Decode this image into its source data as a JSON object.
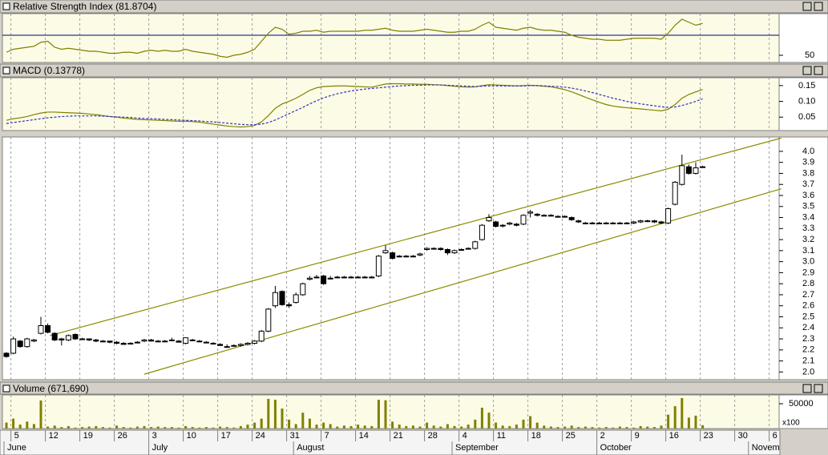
{
  "chart_data": [
    {
      "type": "line",
      "title": "Relative Strength Index (81.8704)",
      "color": "#808000",
      "ylim": [
        42.8,
        91.6
      ],
      "yticks": [
        50
      ],
      "reference_line": 70,
      "reference_color": "#000080",
      "values": [
        53,
        56,
        57,
        58,
        59,
        63,
        64,
        58,
        56,
        57,
        56,
        55,
        54,
        54,
        53,
        52,
        52,
        53,
        53,
        52,
        54,
        55,
        54,
        55,
        54,
        54,
        56,
        54,
        53,
        52,
        51,
        49,
        48,
        50,
        51,
        53,
        56,
        64,
        72,
        78,
        76,
        71,
        72,
        74,
        74,
        75,
        73,
        74,
        74,
        74,
        74,
        74,
        75,
        75,
        76,
        77,
        75,
        74,
        74,
        74,
        75,
        76,
        75,
        74,
        73,
        73,
        74,
        74,
        76,
        80,
        83,
        78,
        77,
        76,
        75,
        77,
        78,
        76,
        75,
        75,
        74,
        73,
        70,
        68,
        67,
        66,
        66,
        65,
        65,
        65,
        66,
        67,
        67,
        67,
        67,
        66,
        72,
        80,
        86,
        83,
        80,
        81.87
      ]
    },
    {
      "type": "line",
      "title": "MACD (0.13778)",
      "ylim": [
        0.0075,
        0.175
      ],
      "yticks": [
        0.15,
        {
          "value": 0.1,
          "label": "0.10"
        },
        0.05
      ],
      "series": [
        {
          "color": "#808000",
          "values": [
            0.04,
            0.045,
            0.048,
            0.052,
            0.058,
            0.063,
            0.066,
            0.066,
            0.065,
            0.064,
            0.063,
            0.062,
            0.06,
            0.058,
            0.055,
            0.052,
            0.05,
            0.047,
            0.045,
            0.043,
            0.042,
            0.041,
            0.04,
            0.039,
            0.038,
            0.037,
            0.037,
            0.036,
            0.034,
            0.031,
            0.028,
            0.025,
            0.022,
            0.02,
            0.019,
            0.02,
            0.024,
            0.035,
            0.055,
            0.078,
            0.092,
            0.1,
            0.11,
            0.122,
            0.135,
            0.143,
            0.147,
            0.148,
            0.149,
            0.149,
            0.148,
            0.147,
            0.146,
            0.145,
            0.15,
            0.155,
            0.156,
            0.156,
            0.155,
            0.155,
            0.154,
            0.154,
            0.153,
            0.152,
            0.15,
            0.148,
            0.146,
            0.145,
            0.146,
            0.15,
            0.153,
            0.152,
            0.151,
            0.15,
            0.149,
            0.15,
            0.151,
            0.15,
            0.148,
            0.146,
            0.142,
            0.137,
            0.13,
            0.122,
            0.113,
            0.105,
            0.097,
            0.09,
            0.085,
            0.082,
            0.08,
            0.078,
            0.076,
            0.074,
            0.072,
            0.07,
            0.075,
            0.09,
            0.11,
            0.122,
            0.13,
            0.13778
          ]
        },
        {
          "color": "#3030c0",
          "dashed": true,
          "values": [
            0.03,
            0.033,
            0.036,
            0.039,
            0.042,
            0.045,
            0.048,
            0.05,
            0.052,
            0.053,
            0.054,
            0.054,
            0.054,
            0.054,
            0.053,
            0.052,
            0.051,
            0.05,
            0.049,
            0.047,
            0.046,
            0.045,
            0.044,
            0.043,
            0.042,
            0.041,
            0.04,
            0.039,
            0.038,
            0.036,
            0.035,
            0.033,
            0.031,
            0.029,
            0.027,
            0.026,
            0.026,
            0.028,
            0.033,
            0.041,
            0.051,
            0.061,
            0.071,
            0.081,
            0.092,
            0.102,
            0.111,
            0.118,
            0.124,
            0.129,
            0.133,
            0.136,
            0.139,
            0.141,
            0.143,
            0.145,
            0.147,
            0.149,
            0.15,
            0.151,
            0.151,
            0.152,
            0.152,
            0.152,
            0.151,
            0.15,
            0.149,
            0.148,
            0.147,
            0.148,
            0.149,
            0.149,
            0.149,
            0.149,
            0.149,
            0.149,
            0.15,
            0.15,
            0.149,
            0.148,
            0.147,
            0.145,
            0.142,
            0.138,
            0.133,
            0.128,
            0.122,
            0.116,
            0.11,
            0.105,
            0.1,
            0.096,
            0.092,
            0.089,
            0.086,
            0.083,
            0.081,
            0.082,
            0.087,
            0.093,
            0.1,
            0.108
          ]
        }
      ]
    },
    {
      "type": "candlestick",
      "ylim": [
        1.93,
        4.13
      ],
      "yticks": [
        {
          "value": 4,
          "label": "4.0"
        },
        3.9,
        3.8,
        3.7,
        3.6,
        3.5,
        3.4,
        3.3,
        3.2,
        3.1,
        {
          "value": 3,
          "label": "3.0"
        },
        2.9,
        2.8,
        2.7,
        2.6,
        2.5,
        2.4,
        2.3,
        2.2,
        2.1,
        {
          "value": 2,
          "label": "2.0"
        }
      ],
      "channel_color": "#8b8b00",
      "channels": [
        {
          "x": [
            6.3,
            112.4
          ],
          "y": [
            2.33,
            4.12
          ]
        },
        {
          "x": [
            20,
            112.4
          ],
          "y": [
            1.98,
            3.66
          ]
        }
      ],
      "ohlc": [
        [
          2.17,
          2.18,
          2.13,
          2.14
        ],
        [
          2.17,
          2.32,
          2.16,
          2.3
        ],
        [
          2.28,
          2.29,
          2.22,
          2.23
        ],
        [
          2.23,
          2.31,
          2.22,
          2.3
        ],
        [
          2.28,
          2.3,
          2.27,
          2.29
        ],
        [
          2.35,
          2.5,
          2.34,
          2.42
        ],
        [
          2.42,
          2.44,
          2.35,
          2.36
        ],
        [
          2.35,
          2.36,
          2.28,
          2.29
        ],
        [
          2.3,
          2.31,
          2.24,
          2.29
        ],
        [
          2.29,
          2.34,
          2.28,
          2.33
        ],
        [
          2.34,
          2.35,
          2.29,
          2.3
        ],
        [
          2.3,
          2.31,
          2.29,
          2.3
        ],
        [
          2.3,
          2.3,
          2.28,
          2.29
        ],
        [
          2.29,
          2.3,
          2.27,
          2.28
        ],
        [
          2.28,
          2.29,
          2.27,
          2.28
        ],
        [
          2.28,
          2.28,
          2.26,
          2.27
        ],
        [
          2.27,
          2.28,
          2.25,
          2.26
        ],
        [
          2.26,
          2.27,
          2.25,
          2.25
        ],
        [
          2.26,
          2.27,
          2.25,
          2.26
        ],
        [
          2.27,
          2.28,
          2.26,
          2.27
        ],
        [
          2.28,
          2.3,
          2.27,
          2.29
        ],
        [
          2.29,
          2.3,
          2.28,
          2.28
        ],
        [
          2.28,
          2.29,
          2.27,
          2.28
        ],
        [
          2.28,
          2.29,
          2.27,
          2.28
        ],
        [
          2.29,
          2.31,
          2.28,
          2.29
        ],
        [
          2.28,
          2.29,
          2.27,
          2.27
        ],
        [
          2.26,
          2.31,
          2.25,
          2.31
        ],
        [
          2.29,
          2.3,
          2.28,
          2.29
        ],
        [
          2.28,
          2.29,
          2.27,
          2.28
        ],
        [
          2.27,
          2.28,
          2.26,
          2.27
        ],
        [
          2.26,
          2.27,
          2.25,
          2.26
        ],
        [
          2.25,
          2.26,
          2.24,
          2.24
        ],
        [
          2.23,
          2.25,
          2.22,
          2.23
        ],
        [
          2.24,
          2.25,
          2.23,
          2.24
        ],
        [
          2.24,
          2.26,
          2.23,
          2.25
        ],
        [
          2.25,
          2.27,
          2.24,
          2.26
        ],
        [
          2.26,
          2.29,
          2.25,
          2.28
        ],
        [
          2.28,
          2.38,
          2.27,
          2.37
        ],
        [
          2.37,
          2.58,
          2.36,
          2.57
        ],
        [
          2.6,
          2.78,
          2.58,
          2.72
        ],
        [
          2.73,
          2.74,
          2.6,
          2.61
        ],
        [
          2.61,
          2.63,
          2.58,
          2.6
        ],
        [
          2.63,
          2.72,
          2.62,
          2.7
        ],
        [
          2.7,
          2.81,
          2.69,
          2.8
        ],
        [
          2.84,
          2.87,
          2.83,
          2.85
        ],
        [
          2.86,
          2.88,
          2.85,
          2.86
        ],
        [
          2.87,
          2.88,
          2.79,
          2.8
        ],
        [
          2.85,
          2.87,
          2.84,
          2.85
        ],
        [
          2.86,
          2.87,
          2.85,
          2.86
        ],
        [
          2.86,
          2.87,
          2.85,
          2.86
        ],
        [
          2.86,
          2.87,
          2.85,
          2.86
        ],
        [
          2.86,
          2.87,
          2.85,
          2.86
        ],
        [
          2.86,
          2.87,
          2.85,
          2.86
        ],
        [
          2.86,
          2.87,
          2.85,
          2.86
        ],
        [
          2.87,
          3.06,
          2.86,
          3.05
        ],
        [
          3.08,
          3.15,
          3.07,
          3.1
        ],
        [
          3.08,
          3.09,
          3.02,
          3.03
        ],
        [
          3.05,
          3.06,
          3.04,
          3.05
        ],
        [
          3.05,
          3.06,
          3.04,
          3.05
        ],
        [
          3.05,
          3.06,
          3.04,
          3.05
        ],
        [
          3.06,
          3.08,
          3.05,
          3.07
        ],
        [
          3.11,
          3.13,
          3.1,
          3.12
        ],
        [
          3.12,
          3.13,
          3.11,
          3.12
        ],
        [
          3.12,
          3.13,
          3.1,
          3.11
        ],
        [
          3.11,
          3.12,
          3.06,
          3.08
        ],
        [
          3.08,
          3.11,
          3.07,
          3.1
        ],
        [
          3.11,
          3.12,
          3.1,
          3.11
        ],
        [
          3.12,
          3.13,
          3.11,
          3.12
        ],
        [
          3.12,
          3.19,
          3.11,
          3.18
        ],
        [
          3.2,
          3.34,
          3.19,
          3.33
        ],
        [
          3.37,
          3.43,
          3.36,
          3.4
        ],
        [
          3.36,
          3.37,
          3.31,
          3.32
        ],
        [
          3.33,
          3.34,
          3.31,
          3.33
        ],
        [
          3.34,
          3.36,
          3.33,
          3.35
        ],
        [
          3.34,
          3.35,
          3.32,
          3.33
        ],
        [
          3.34,
          3.43,
          3.33,
          3.42
        ],
        [
          3.44,
          3.47,
          3.4,
          3.45
        ],
        [
          3.43,
          3.44,
          3.41,
          3.42
        ],
        [
          3.42,
          3.43,
          3.41,
          3.42
        ],
        [
          3.42,
          3.43,
          3.41,
          3.42
        ],
        [
          3.41,
          3.42,
          3.4,
          3.41
        ],
        [
          3.41,
          3.42,
          3.4,
          3.41
        ],
        [
          3.4,
          3.41,
          3.37,
          3.38
        ],
        [
          3.37,
          3.38,
          3.35,
          3.36
        ],
        [
          3.35,
          3.36,
          3.34,
          3.35
        ],
        [
          3.35,
          3.36,
          3.34,
          3.35
        ],
        [
          3.35,
          3.36,
          3.34,
          3.35
        ],
        [
          3.35,
          3.36,
          3.34,
          3.35
        ],
        [
          3.35,
          3.36,
          3.34,
          3.35
        ],
        [
          3.35,
          3.36,
          3.34,
          3.35
        ],
        [
          3.35,
          3.36,
          3.34,
          3.35
        ],
        [
          3.35,
          3.37,
          3.34,
          3.36
        ],
        [
          3.36,
          3.38,
          3.35,
          3.37
        ],
        [
          3.37,
          3.38,
          3.36,
          3.37
        ],
        [
          3.37,
          3.38,
          3.35,
          3.36
        ],
        [
          3.36,
          3.37,
          3.34,
          3.35
        ],
        [
          3.35,
          3.49,
          3.34,
          3.48
        ],
        [
          3.52,
          3.73,
          3.51,
          3.72
        ],
        [
          3.7,
          3.97,
          3.69,
          3.87
        ],
        [
          3.86,
          3.88,
          3.79,
          3.8
        ],
        [
          3.8,
          3.9,
          3.79,
          3.85
        ],
        [
          3.86,
          3.87,
          3.85,
          3.86
        ]
      ]
    },
    {
      "type": "bar",
      "title": "Volume (671,690)",
      "color": "#808000",
      "ylim": [
        0,
        67700
      ],
      "yticks": [
        50000
      ],
      "multiplier_label": "x100",
      "values": [
        12000,
        20000,
        8000,
        14000,
        9000,
        56500,
        4000,
        6000,
        3000,
        5000,
        2000,
        3000,
        4000,
        5000,
        3000,
        2000,
        6000,
        3000,
        2000,
        4000,
        5000,
        3000,
        4000,
        3000,
        3000,
        2000,
        5000,
        3000,
        2000,
        3000,
        2000,
        4000,
        3000,
        2000,
        5000,
        8000,
        12000,
        20000,
        59700,
        58000,
        40300,
        18000,
        9000,
        32000,
        20000,
        8000,
        12000,
        9000,
        4000,
        6000,
        5000,
        8000,
        6000,
        5000,
        58000,
        57000,
        14000,
        8000,
        5000,
        6000,
        4000,
        12000,
        6000,
        4000,
        9000,
        5000,
        4000,
        8000,
        18000,
        42000,
        32000,
        12000,
        6000,
        5000,
        8000,
        18000,
        25000,
        12000,
        6000,
        4000,
        3000,
        4000,
        6000,
        3000,
        4000,
        3000,
        2000,
        3000,
        2000,
        4000,
        3000,
        2000,
        5000,
        4000,
        3000,
        6000,
        28000,
        45000,
        61300,
        22000,
        26000,
        6717
      ],
      "xticks": [
        {
          "value": 1,
          "label": "5"
        },
        {
          "value": 6,
          "label": "12"
        },
        {
          "value": 11,
          "label": "19"
        },
        {
          "value": 16,
          "label": "26"
        },
        {
          "value": 21,
          "label": "3"
        },
        {
          "value": 26,
          "label": "10"
        },
        {
          "value": 31,
          "label": "17"
        },
        {
          "value": 36,
          "label": "24"
        },
        {
          "value": 41,
          "label": "31"
        },
        {
          "value": 46,
          "label": "7"
        },
        {
          "value": 51,
          "label": "14"
        },
        {
          "value": 56,
          "label": "21"
        },
        {
          "value": 61,
          "label": "28"
        },
        {
          "value": 66,
          "label": "4"
        },
        {
          "value": 71,
          "label": "11"
        },
        {
          "value": 76,
          "label": "18"
        },
        {
          "value": 81,
          "label": "25"
        },
        {
          "value": 86,
          "label": "2"
        },
        {
          "value": 91,
          "label": "9"
        },
        {
          "value": 96,
          "label": "16"
        },
        {
          "value": 101,
          "label": "23"
        },
        {
          "value": 106,
          "label": "30"
        },
        {
          "value": 111,
          "label": "6"
        }
      ],
      "months": [
        {
          "value": 0,
          "label": "June"
        },
        {
          "value": 21,
          "label": "July"
        },
        {
          "value": 42,
          "label": "August"
        },
        {
          "value": 65,
          "label": "September"
        },
        {
          "value": 86,
          "label": "October"
        },
        {
          "value": 108,
          "label": "Novem"
        }
      ]
    }
  ]
}
